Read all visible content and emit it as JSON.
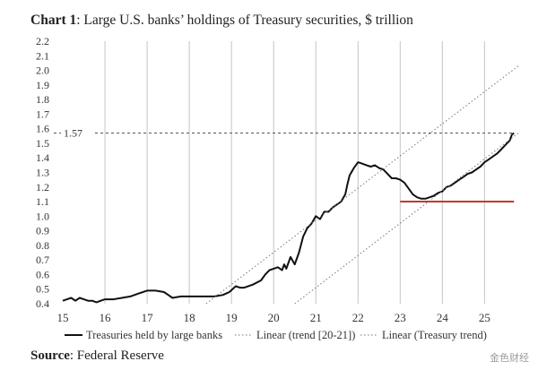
{
  "title": {
    "bold": "Chart 1",
    "rest": ": Large U.S. banks’ holdings of Treasury securities, $ trillion"
  },
  "source": {
    "bold": "Source",
    "rest": ": Federal Reserve"
  },
  "watermark": "金色财经",
  "chart_data": {
    "type": "line",
    "ylim": [
      0.4,
      2.2
    ],
    "xlim": [
      15,
      25.8
    ],
    "y_ticks": [
      "0.4",
      "0.5",
      "0.6",
      "0.7",
      "0.8",
      "0.9",
      "1.0",
      "1.1",
      "1.2",
      "1.3",
      "1.4",
      "1.5",
      "1.6",
      "1.7",
      "1.8",
      "1.9",
      "2.0",
      "2.1",
      "2.2"
    ],
    "x_ticks": [
      "15",
      "16",
      "17",
      "18",
      "19",
      "20",
      "21",
      "22",
      "23",
      "24",
      "25"
    ],
    "grid": "vertical",
    "reference_line": {
      "value": 1.57,
      "label": "1.57",
      "color": "#555555"
    },
    "red_line": {
      "x": [
        23,
        25.7
      ],
      "y": 1.1,
      "color": "#c0392b"
    },
    "series": [
      {
        "name": "Treasuries held by large banks",
        "style": "solid",
        "color": "#111111",
        "points": [
          [
            15.0,
            0.42
          ],
          [
            15.1,
            0.43
          ],
          [
            15.2,
            0.44
          ],
          [
            15.3,
            0.42
          ],
          [
            15.4,
            0.44
          ],
          [
            15.5,
            0.43
          ],
          [
            15.6,
            0.42
          ],
          [
            15.7,
            0.42
          ],
          [
            15.8,
            0.41
          ],
          [
            15.9,
            0.42
          ],
          [
            16.0,
            0.43
          ],
          [
            16.2,
            0.43
          ],
          [
            16.4,
            0.44
          ],
          [
            16.6,
            0.45
          ],
          [
            16.8,
            0.47
          ],
          [
            17.0,
            0.49
          ],
          [
            17.2,
            0.49
          ],
          [
            17.4,
            0.48
          ],
          [
            17.5,
            0.46
          ],
          [
            17.6,
            0.44
          ],
          [
            17.8,
            0.45
          ],
          [
            18.0,
            0.45
          ],
          [
            18.2,
            0.45
          ],
          [
            18.4,
            0.45
          ],
          [
            18.6,
            0.45
          ],
          [
            18.8,
            0.46
          ],
          [
            18.95,
            0.48
          ],
          [
            19.1,
            0.52
          ],
          [
            19.2,
            0.51
          ],
          [
            19.3,
            0.51
          ],
          [
            19.5,
            0.53
          ],
          [
            19.7,
            0.56
          ],
          [
            19.8,
            0.6
          ],
          [
            19.9,
            0.63
          ],
          [
            20.0,
            0.64
          ],
          [
            20.1,
            0.65
          ],
          [
            20.2,
            0.63
          ],
          [
            20.25,
            0.67
          ],
          [
            20.3,
            0.64
          ],
          [
            20.4,
            0.72
          ],
          [
            20.5,
            0.67
          ],
          [
            20.6,
            0.75
          ],
          [
            20.7,
            0.86
          ],
          [
            20.8,
            0.92
          ],
          [
            20.9,
            0.95
          ],
          [
            21.0,
            1.0
          ],
          [
            21.1,
            0.98
          ],
          [
            21.2,
            1.03
          ],
          [
            21.3,
            1.03
          ],
          [
            21.4,
            1.06
          ],
          [
            21.5,
            1.08
          ],
          [
            21.6,
            1.1
          ],
          [
            21.7,
            1.15
          ],
          [
            21.75,
            1.22
          ],
          [
            21.8,
            1.28
          ],
          [
            21.9,
            1.33
          ],
          [
            22.0,
            1.37
          ],
          [
            22.1,
            1.36
          ],
          [
            22.2,
            1.35
          ],
          [
            22.3,
            1.34
          ],
          [
            22.4,
            1.35
          ],
          [
            22.5,
            1.33
          ],
          [
            22.6,
            1.32
          ],
          [
            22.7,
            1.29
          ],
          [
            22.8,
            1.26
          ],
          [
            22.9,
            1.26
          ],
          [
            23.0,
            1.25
          ],
          [
            23.1,
            1.23
          ],
          [
            23.2,
            1.19
          ],
          [
            23.3,
            1.15
          ],
          [
            23.4,
            1.13
          ],
          [
            23.5,
            1.12
          ],
          [
            23.6,
            1.12
          ],
          [
            23.7,
            1.13
          ],
          [
            23.8,
            1.14
          ],
          [
            23.9,
            1.16
          ],
          [
            24.0,
            1.17
          ],
          [
            24.1,
            1.2
          ],
          [
            24.2,
            1.21
          ],
          [
            24.3,
            1.23
          ],
          [
            24.4,
            1.25
          ],
          [
            24.5,
            1.27
          ],
          [
            24.6,
            1.29
          ],
          [
            24.7,
            1.3
          ],
          [
            24.8,
            1.32
          ],
          [
            24.9,
            1.34
          ],
          [
            25.0,
            1.37
          ],
          [
            25.1,
            1.39
          ],
          [
            25.2,
            1.41
          ],
          [
            25.3,
            1.43
          ],
          [
            25.4,
            1.46
          ],
          [
            25.5,
            1.49
          ],
          [
            25.6,
            1.52
          ],
          [
            25.65,
            1.56
          ],
          [
            25.7,
            1.57
          ]
        ]
      },
      {
        "name": "Linear (trend [20-21])",
        "style": "dotted",
        "color": "#777777",
        "points": [
          [
            18.4,
            0.4
          ],
          [
            25.8,
            2.03
          ]
        ]
      },
      {
        "name": "Linear (Treasury trend)",
        "style": "dotted",
        "color": "#777777",
        "points": [
          [
            20.5,
            0.4
          ],
          [
            25.8,
            1.57
          ]
        ]
      }
    ]
  }
}
